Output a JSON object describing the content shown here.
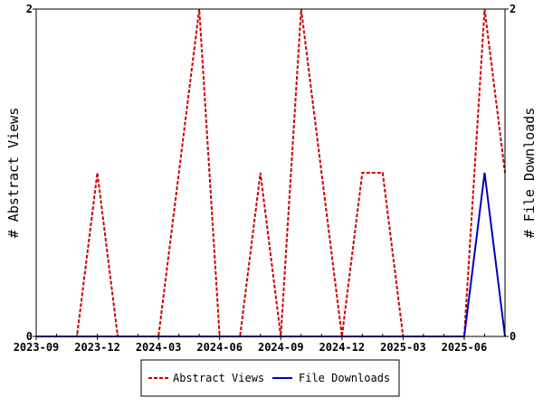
{
  "chart_data": {
    "type": "line",
    "x": [
      "2023-09",
      "2023-10",
      "2023-11",
      "2023-12",
      "2024-01",
      "2024-02",
      "2024-03",
      "2024-04",
      "2024-05",
      "2024-06",
      "2024-07",
      "2024-08",
      "2024-09",
      "2024-10",
      "2024-11",
      "2024-12",
      "2025-01",
      "2025-02",
      "2025-03",
      "2025-04",
      "2025-05",
      "2025-06",
      "2025-07",
      "2025-08"
    ],
    "x_ticks": [
      "2023-09",
      "2023-12",
      "2024-03",
      "2024-06",
      "2024-09",
      "2024-12",
      "2025-03",
      "2025-06"
    ],
    "ylabel_left": "# Abstract Views",
    "ylabel_right": "# File Downloads",
    "ylim_left": [
      0,
      2
    ],
    "ylim_right": [
      0,
      2
    ],
    "y_ticks_left": [
      "0",
      "2"
    ],
    "y_ticks_right": [
      "0",
      "2"
    ],
    "legend_position": "bottom",
    "series": [
      {
        "name": "Abstract Views",
        "axis": "left",
        "color": "#cc0000",
        "style": "dashed",
        "values": [
          0,
          0,
          0,
          1,
          0,
          0,
          0,
          1,
          2,
          0,
          0,
          1,
          0,
          2,
          1,
          0,
          1,
          1,
          0,
          0,
          0,
          0,
          2,
          1
        ]
      },
      {
        "name": "File Downloads",
        "axis": "right",
        "color": "#0000bb",
        "style": "solid",
        "values": [
          0,
          0,
          0,
          0,
          0,
          0,
          0,
          0,
          0,
          0,
          0,
          0,
          0,
          0,
          0,
          0,
          0,
          0,
          0,
          0,
          0,
          0,
          1,
          0
        ]
      }
    ]
  }
}
